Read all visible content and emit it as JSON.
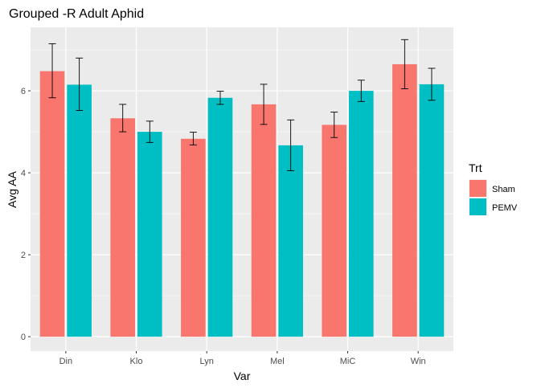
{
  "chart_data": {
    "type": "bar",
    "title": "Grouped -R Adult Aphid",
    "xlabel": "Var",
    "ylabel": "Avg AA",
    "categories": [
      "Din",
      "Klo",
      "Lyn",
      "Mel",
      "MiC",
      "Win"
    ],
    "yticks": [
      "0",
      "2",
      "4",
      "6"
    ],
    "ylim": [
      -0.35,
      7.55
    ],
    "grid": true,
    "legend": {
      "title": "Trt",
      "position": "right"
    },
    "series": [
      {
        "name": "Sham",
        "color": "#F8766D",
        "values": [
          6.48,
          5.33,
          4.83,
          5.67,
          5.17,
          6.65
        ],
        "error_low": [
          5.83,
          5.0,
          4.68,
          5.18,
          4.86,
          6.05
        ],
        "error_high": [
          7.15,
          5.67,
          4.99,
          6.16,
          5.48,
          7.25
        ]
      },
      {
        "name": "PEMV",
        "color": "#00BFC4",
        "values": [
          6.15,
          5.0,
          5.83,
          4.67,
          6.0,
          6.16
        ],
        "error_low": [
          5.52,
          4.74,
          5.67,
          4.05,
          5.74,
          5.77
        ],
        "error_high": [
          6.8,
          5.26,
          5.99,
          5.29,
          6.26,
          6.55
        ]
      }
    ]
  }
}
